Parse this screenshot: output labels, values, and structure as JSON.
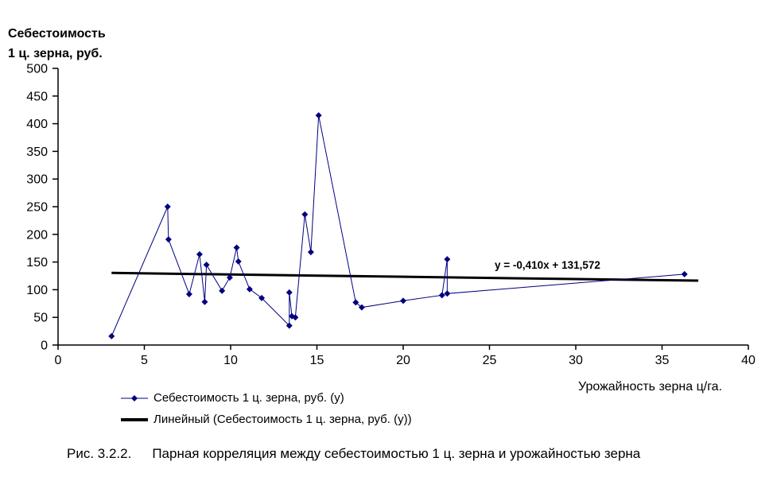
{
  "colors": {
    "series": "#000080",
    "trend": "#000000",
    "axis": "#000000",
    "background": "#ffffff"
  },
  "chart": {
    "y_title_line1": "Себестоимость",
    "y_title_line2": "1 ц. зерна, руб."
  },
  "legend": {
    "items": [
      {
        "label": "Себестоимость 1 ц. зерна, руб. (у)",
        "marker": "diamond-line",
        "color": "#000080"
      },
      {
        "label": "Линейный (Себестоимость 1 ц. зерна, руб. (у))",
        "marker": "thick-line",
        "color": "#000000"
      }
    ]
  },
  "caption": {
    "prefix": "Рис. 3.2.2.",
    "text": "Парная корреляция между себестоимостью 1 ц. зерна и урожайностью зерна"
  },
  "chart_data": {
    "type": "scatter",
    "series_name": "Себестоимость 1 ц. зерна, руб. (у)",
    "xlabel": "Урожайность зерна ц/га.",
    "ylabel": "Себестоимость 1 ц. зерна, руб.",
    "x": [
      3.1,
      6.35,
      6.4,
      7.6,
      8.2,
      8.5,
      8.6,
      9.5,
      9.95,
      10.35,
      10.45,
      11.1,
      11.8,
      13.4,
      13.4,
      13.55,
      13.75,
      14.3,
      14.65,
      15.1,
      17.25,
      17.6,
      20,
      22.25,
      22.55,
      22.55,
      36.3
    ],
    "y": [
      16,
      250,
      191,
      92,
      164,
      78,
      145,
      98,
      122,
      176,
      151,
      101,
      85,
      35,
      95,
      52,
      50,
      236,
      168,
      415,
      77,
      68,
      80,
      90,
      155,
      93,
      128
    ],
    "xlim": [
      0,
      40
    ],
    "ylim": [
      0,
      500
    ],
    "x_ticks": [
      0,
      5,
      10,
      15,
      20,
      25,
      30,
      35,
      40
    ],
    "y_ticks": [
      0,
      50,
      100,
      150,
      200,
      250,
      300,
      350,
      400,
      450,
      500
    ],
    "grid": false,
    "legend_position": "bottom-left",
    "marker": "diamond",
    "connected": true,
    "trendline": {
      "type": "linear",
      "slope": -0.41,
      "intercept": 131.572,
      "x_start": 3.1,
      "x_end": 37.1,
      "equation": "y = -0,410x + 131,572"
    }
  }
}
